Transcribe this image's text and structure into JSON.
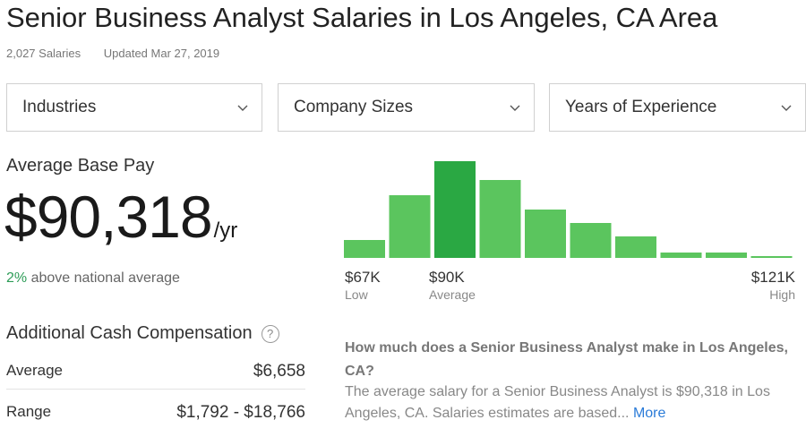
{
  "header": {
    "title": "Senior Business Analyst Salaries in Los Angeles, CA Area",
    "salary_count": "2,027 Salaries",
    "updated": "Updated Mar 27, 2019"
  },
  "filters": [
    {
      "label": "Industries"
    },
    {
      "label": "Company Sizes"
    },
    {
      "label": "Years of Experience"
    }
  ],
  "pay": {
    "label": "Average Base Pay",
    "amount": "$90,318",
    "unit": "/yr",
    "comparison_pct": "2%",
    "comparison_text": " above national average"
  },
  "additional": {
    "label": "Additional Cash Compensation",
    "help": "?",
    "rows": [
      {
        "label": "Average",
        "value": "$6,658"
      },
      {
        "label": "Range",
        "value": "$1,792 - $18,766"
      }
    ]
  },
  "chart_data": {
    "type": "bar",
    "values": [
      20,
      70,
      108,
      87,
      54,
      39,
      24,
      6,
      6,
      2
    ],
    "highlight_index": 2,
    "colors": {
      "bar": "#5bc55e",
      "highlight": "#2aa843"
    },
    "labels": {
      "low": {
        "value": "$67K",
        "sub": "Low"
      },
      "average": {
        "value": "$90K",
        "sub": "Average"
      },
      "high": {
        "value": "$121K",
        "sub": "High"
      }
    }
  },
  "faq": {
    "question": "How much does a Senior Business Analyst make in Los Angeles, CA?",
    "answer": "The average salary for a Senior Business Analyst is $90,318 in Los Angeles, CA. Salaries estimates are based...",
    "more": " More"
  }
}
